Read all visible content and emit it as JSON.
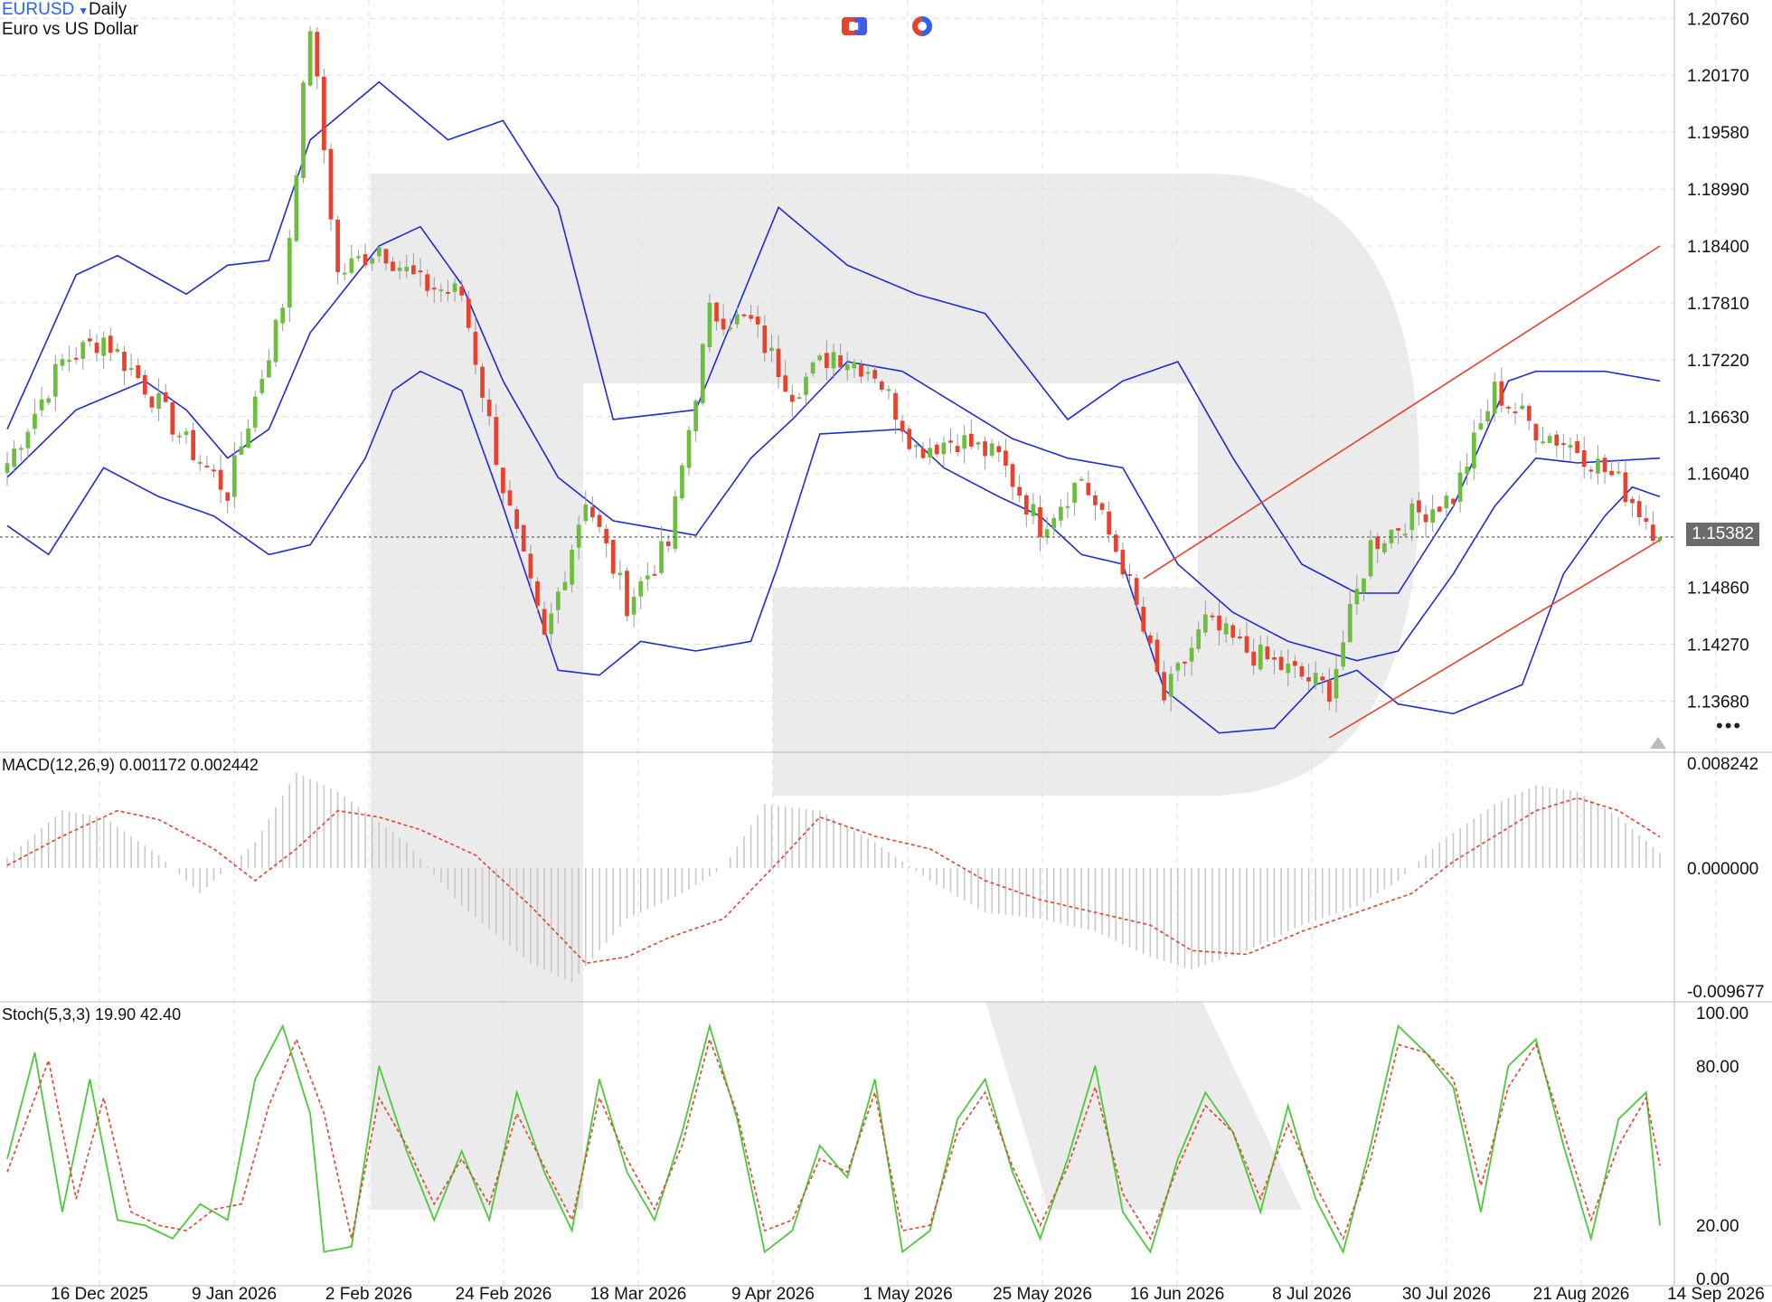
{
  "header": {
    "symbol": "EURUSD",
    "timeframe": "Daily",
    "description": "Euro vs US Dollar"
  },
  "toolbar": {
    "icons": [
      "chart-type-icon",
      "indicator-icon"
    ]
  },
  "price_axis": {
    "ticks": [
      "1.20760",
      "1.20170",
      "1.19580",
      "1.18990",
      "1.18400",
      "1.17810",
      "1.17220",
      "1.16630",
      "1.16040",
      "1.14860",
      "1.14270",
      "1.13680"
    ],
    "current_price": "1.15382"
  },
  "time_axis": {
    "labels": [
      "16 Dec 2025",
      "9 Jan 2026",
      "2 Feb 2026",
      "24 Feb 2026",
      "18 Mar 2026",
      "9 Apr 2026",
      "1 May 2026",
      "25 May 2026",
      "16 Jun 2026",
      "8 Jul 2026",
      "30 Jul 2026",
      "21 Aug 2026",
      "14 Sep 2026"
    ]
  },
  "macd": {
    "label": "MACD(12,26,9) 0.001172 0.002442",
    "ticks": [
      "0.008242",
      "0.000000",
      "-0.009677"
    ]
  },
  "stoch": {
    "label": "Stoch(5,3,3) 19.90 42.40",
    "ticks": [
      "100.00",
      "80.00",
      "20.00",
      "0.00"
    ]
  },
  "colors": {
    "bull": "#6cbf3c",
    "bear": "#e8412e",
    "band": "#1f2bd6",
    "trend": "#e8412e",
    "stoch_k": "#4cc93a",
    "stoch_d": "#e8412e",
    "macd_hist": "#c8c8c8",
    "macd_signal": "#e8412e"
  },
  "chart_data": {
    "type": "candlestick",
    "symbol": "EURUSD",
    "timeframe": "Daily",
    "ylim": [
      1.1315,
      1.2095
    ],
    "x_labels": [
      "16 Dec 2025",
      "9 Jan 2026",
      "2 Feb 2026",
      "24 Feb 2026",
      "18 Mar 2026",
      "9 Apr 2026",
      "1 May 2026",
      "25 May 2026",
      "16 Jun 2026",
      "8 Jul 2026",
      "30 Jul 2026",
      "21 Aug 2026",
      "14 Sep 2026"
    ],
    "close_anchors": [
      [
        0,
        1.1615
      ],
      [
        8,
        1.172
      ],
      [
        14,
        1.1745
      ],
      [
        20,
        1.1695
      ],
      [
        26,
        1.1635
      ],
      [
        32,
        1.1585
      ],
      [
        40,
        1.178
      ],
      [
        44,
        1.207
      ],
      [
        48,
        1.181
      ],
      [
        54,
        1.184
      ],
      [
        60,
        1.18
      ],
      [
        66,
        1.179
      ],
      [
        72,
        1.159
      ],
      [
        78,
        1.143
      ],
      [
        84,
        1.158
      ],
      [
        90,
        1.147
      ],
      [
        96,
        1.153
      ],
      [
        102,
        1.177
      ],
      [
        108,
        1.176
      ],
      [
        114,
        1.169
      ],
      [
        120,
        1.173
      ],
      [
        126,
        1.171
      ],
      [
        132,
        1.163
      ],
      [
        138,
        1.164
      ],
      [
        144,
        1.162
      ],
      [
        150,
        1.155
      ],
      [
        156,
        1.16
      ],
      [
        162,
        1.151
      ],
      [
        168,
        1.137
      ],
      [
        174,
        1.145
      ],
      [
        180,
        1.142
      ],
      [
        186,
        1.14
      ],
      [
        192,
        1.138
      ],
      [
        198,
        1.153
      ],
      [
        204,
        1.156
      ],
      [
        210,
        1.158
      ],
      [
        216,
        1.169
      ],
      [
        222,
        1.165
      ],
      [
        228,
        1.163
      ],
      [
        234,
        1.1595
      ],
      [
        240,
        1.1538
      ]
    ],
    "bollinger": {
      "upper": [
        [
          0,
          1.165
        ],
        [
          10,
          1.181
        ],
        [
          16,
          1.183
        ],
        [
          26,
          1.179
        ],
        [
          32,
          1.182
        ],
        [
          38,
          1.1825
        ],
        [
          44,
          1.195
        ],
        [
          54,
          1.201
        ],
        [
          64,
          1.195
        ],
        [
          72,
          1.197
        ],
        [
          80,
          1.188
        ],
        [
          88,
          1.166
        ],
        [
          100,
          1.167
        ],
        [
          112,
          1.188
        ],
        [
          122,
          1.182
        ],
        [
          132,
          1.179
        ],
        [
          142,
          1.177
        ],
        [
          154,
          1.166
        ],
        [
          162,
          1.17
        ],
        [
          170,
          1.172
        ],
        [
          178,
          1.162
        ],
        [
          188,
          1.151
        ],
        [
          196,
          1.148
        ],
        [
          202,
          1.148
        ],
        [
          210,
          1.157
        ],
        [
          218,
          1.17
        ],
        [
          222,
          1.171
        ],
        [
          232,
          1.171
        ],
        [
          240,
          1.17
        ]
      ],
      "middle": [
        [
          0,
          1.16
        ],
        [
          10,
          1.167
        ],
        [
          20,
          1.17
        ],
        [
          26,
          1.167
        ],
        [
          32,
          1.162
        ],
        [
          38,
          1.165
        ],
        [
          44,
          1.175
        ],
        [
          54,
          1.184
        ],
        [
          60,
          1.186
        ],
        [
          66,
          1.18
        ],
        [
          72,
          1.17
        ],
        [
          80,
          1.16
        ],
        [
          88,
          1.1555
        ],
        [
          100,
          1.154
        ],
        [
          108,
          1.162
        ],
        [
          114,
          1.166
        ],
        [
          122,
          1.172
        ],
        [
          130,
          1.171
        ],
        [
          138,
          1.1675
        ],
        [
          146,
          1.164
        ],
        [
          154,
          1.162
        ],
        [
          162,
          1.161
        ],
        [
          170,
          1.151
        ],
        [
          178,
          1.146
        ],
        [
          186,
          1.143
        ],
        [
          196,
          1.141
        ],
        [
          202,
          1.142
        ],
        [
          210,
          1.15
        ],
        [
          216,
          1.157
        ],
        [
          222,
          1.162
        ],
        [
          228,
          1.1615
        ],
        [
          240,
          1.162
        ]
      ],
      "lower": [
        [
          0,
          1.155
        ],
        [
          6,
          1.152
        ],
        [
          14,
          1.161
        ],
        [
          22,
          1.158
        ],
        [
          30,
          1.156
        ],
        [
          38,
          1.152
        ],
        [
          44,
          1.153
        ],
        [
          52,
          1.162
        ],
        [
          56,
          1.169
        ],
        [
          60,
          1.171
        ],
        [
          66,
          1.169
        ],
        [
          72,
          1.157
        ],
        [
          80,
          1.14
        ],
        [
          86,
          1.1395
        ],
        [
          92,
          1.143
        ],
        [
          100,
          1.142
        ],
        [
          108,
          1.143
        ],
        [
          112,
          1.151
        ],
        [
          118,
          1.1645
        ],
        [
          130,
          1.165
        ],
        [
          136,
          1.161
        ],
        [
          144,
          1.158
        ],
        [
          150,
          1.156
        ],
        [
          156,
          1.152
        ],
        [
          162,
          1.151
        ],
        [
          168,
          1.138
        ],
        [
          176,
          1.1335
        ],
        [
          184,
          1.134
        ],
        [
          190,
          1.1385
        ],
        [
          196,
          1.14
        ],
        [
          202,
          1.1365
        ],
        [
          210,
          1.1355
        ],
        [
          220,
          1.1385
        ],
        [
          226,
          1.15
        ],
        [
          232,
          1.156
        ],
        [
          236,
          1.159
        ],
        [
          240,
          1.158
        ]
      ]
    },
    "trend_channel": [
      {
        "from": [
          165,
          1.1495
        ],
        "to": [
          240,
          1.184
        ]
      },
      {
        "from": [
          192,
          1.133
        ],
        "to": [
          240,
          1.1535
        ]
      }
    ],
    "macd": {
      "value": 0.001172,
      "signal": 0.002442,
      "ylim": [
        -0.009677,
        0.008242
      ],
      "signal_anchors": [
        [
          0,
          0.0002
        ],
        [
          8,
          0.0025
        ],
        [
          16,
          0.0045
        ],
        [
          22,
          0.0038
        ],
        [
          30,
          0.0015
        ],
        [
          36,
          -0.001
        ],
        [
          42,
          0.0015
        ],
        [
          48,
          0.0045
        ],
        [
          54,
          0.004
        ],
        [
          60,
          0.003
        ],
        [
          68,
          0.001
        ],
        [
          76,
          -0.003
        ],
        [
          84,
          -0.0075
        ],
        [
          90,
          -0.007
        ],
        [
          96,
          -0.0055
        ],
        [
          104,
          -0.004
        ],
        [
          112,
          0.0005
        ],
        [
          118,
          0.004
        ],
        [
          126,
          0.0025
        ],
        [
          134,
          0.0015
        ],
        [
          142,
          -0.001
        ],
        [
          150,
          -0.0025
        ],
        [
          158,
          -0.0035
        ],
        [
          166,
          -0.0045
        ],
        [
          172,
          -0.0065
        ],
        [
          180,
          -0.0068
        ],
        [
          188,
          -0.005
        ],
        [
          196,
          -0.0035
        ],
        [
          204,
          -0.002
        ],
        [
          210,
          0.0005
        ],
        [
          216,
          0.0025
        ],
        [
          222,
          0.0045
        ],
        [
          228,
          0.0055
        ],
        [
          234,
          0.0045
        ],
        [
          240,
          0.002442
        ]
      ],
      "hist_anchors": [
        [
          0,
          0.0008
        ],
        [
          8,
          0.0045
        ],
        [
          14,
          0.004
        ],
        [
          22,
          0.001
        ],
        [
          28,
          -0.002
        ],
        [
          36,
          0.002
        ],
        [
          42,
          0.0075
        ],
        [
          48,
          0.006
        ],
        [
          58,
          0.002
        ],
        [
          66,
          -0.003
        ],
        [
          76,
          -0.0075
        ],
        [
          82,
          -0.009
        ],
        [
          90,
          -0.004
        ],
        [
          98,
          -0.002
        ],
        [
          104,
          0.0
        ],
        [
          110,
          0.005
        ],
        [
          118,
          0.0045
        ],
        [
          126,
          0.002
        ],
        [
          134,
          -0.001
        ],
        [
          142,
          -0.0035
        ],
        [
          150,
          -0.004
        ],
        [
          158,
          -0.005
        ],
        [
          166,
          -0.007
        ],
        [
          172,
          -0.008
        ],
        [
          180,
          -0.0065
        ],
        [
          188,
          -0.0045
        ],
        [
          196,
          -0.003
        ],
        [
          202,
          -0.001
        ],
        [
          208,
          0.002
        ],
        [
          216,
          0.005
        ],
        [
          222,
          0.0065
        ],
        [
          228,
          0.006
        ],
        [
          234,
          0.004
        ],
        [
          240,
          0.001172
        ]
      ]
    },
    "stoch": {
      "k": 19.9,
      "d": 42.4,
      "ylim": [
        0,
        100
      ],
      "k_anchors": [
        [
          0,
          45
        ],
        [
          4,
          85
        ],
        [
          8,
          25
        ],
        [
          12,
          75
        ],
        [
          16,
          22
        ],
        [
          20,
          20
        ],
        [
          24,
          15
        ],
        [
          28,
          28
        ],
        [
          32,
          22
        ],
        [
          36,
          75
        ],
        [
          40,
          95
        ],
        [
          44,
          62
        ],
        [
          46,
          10
        ],
        [
          50,
          12
        ],
        [
          54,
          80
        ],
        [
          58,
          48
        ],
        [
          62,
          22
        ],
        [
          66,
          48
        ],
        [
          70,
          22
        ],
        [
          74,
          70
        ],
        [
          78,
          40
        ],
        [
          82,
          18
        ],
        [
          86,
          75
        ],
        [
          90,
          40
        ],
        [
          94,
          22
        ],
        [
          98,
          55
        ],
        [
          102,
          95
        ],
        [
          106,
          60
        ],
        [
          110,
          10
        ],
        [
          114,
          18
        ],
        [
          118,
          50
        ],
        [
          122,
          38
        ],
        [
          126,
          75
        ],
        [
          130,
          10
        ],
        [
          134,
          18
        ],
        [
          138,
          60
        ],
        [
          142,
          75
        ],
        [
          146,
          40
        ],
        [
          150,
          15
        ],
        [
          154,
          45
        ],
        [
          158,
          80
        ],
        [
          162,
          25
        ],
        [
          166,
          10
        ],
        [
          170,
          45
        ],
        [
          174,
          70
        ],
        [
          178,
          55
        ],
        [
          182,
          25
        ],
        [
          186,
          65
        ],
        [
          190,
          30
        ],
        [
          194,
          10
        ],
        [
          198,
          50
        ],
        [
          202,
          95
        ],
        [
          206,
          85
        ],
        [
          210,
          72
        ],
        [
          214,
          25
        ],
        [
          218,
          80
        ],
        [
          222,
          90
        ],
        [
          226,
          50
        ],
        [
          230,
          15
        ],
        [
          234,
          60
        ],
        [
          238,
          70
        ],
        [
          240,
          19.9
        ]
      ],
      "d_anchors": [
        [
          0,
          40
        ],
        [
          6,
          82
        ],
        [
          10,
          30
        ],
        [
          14,
          68
        ],
        [
          18,
          25
        ],
        [
          22,
          20
        ],
        [
          26,
          18
        ],
        [
          30,
          26
        ],
        [
          34,
          28
        ],
        [
          38,
          65
        ],
        [
          42,
          90
        ],
        [
          46,
          62
        ],
        [
          50,
          15
        ],
        [
          54,
          68
        ],
        [
          58,
          50
        ],
        [
          62,
          28
        ],
        [
          66,
          45
        ],
        [
          70,
          28
        ],
        [
          74,
          62
        ],
        [
          78,
          42
        ],
        [
          82,
          22
        ],
        [
          86,
          68
        ],
        [
          90,
          45
        ],
        [
          94,
          26
        ],
        [
          98,
          50
        ],
        [
          102,
          90
        ],
        [
          106,
          62
        ],
        [
          110,
          18
        ],
        [
          114,
          22
        ],
        [
          118,
          45
        ],
        [
          122,
          40
        ],
        [
          126,
          70
        ],
        [
          130,
          18
        ],
        [
          134,
          20
        ],
        [
          138,
          55
        ],
        [
          142,
          70
        ],
        [
          146,
          42
        ],
        [
          150,
          20
        ],
        [
          154,
          42
        ],
        [
          158,
          72
        ],
        [
          162,
          32
        ],
        [
          166,
          15
        ],
        [
          170,
          42
        ],
        [
          174,
          65
        ],
        [
          178,
          55
        ],
        [
          182,
          30
        ],
        [
          186,
          58
        ],
        [
          190,
          35
        ],
        [
          194,
          15
        ],
        [
          198,
          45
        ],
        [
          202,
          88
        ],
        [
          206,
          85
        ],
        [
          210,
          75
        ],
        [
          214,
          35
        ],
        [
          218,
          72
        ],
        [
          222,
          88
        ],
        [
          226,
          55
        ],
        [
          230,
          22
        ],
        [
          234,
          50
        ],
        [
          238,
          68
        ],
        [
          240,
          42.4
        ]
      ]
    }
  }
}
